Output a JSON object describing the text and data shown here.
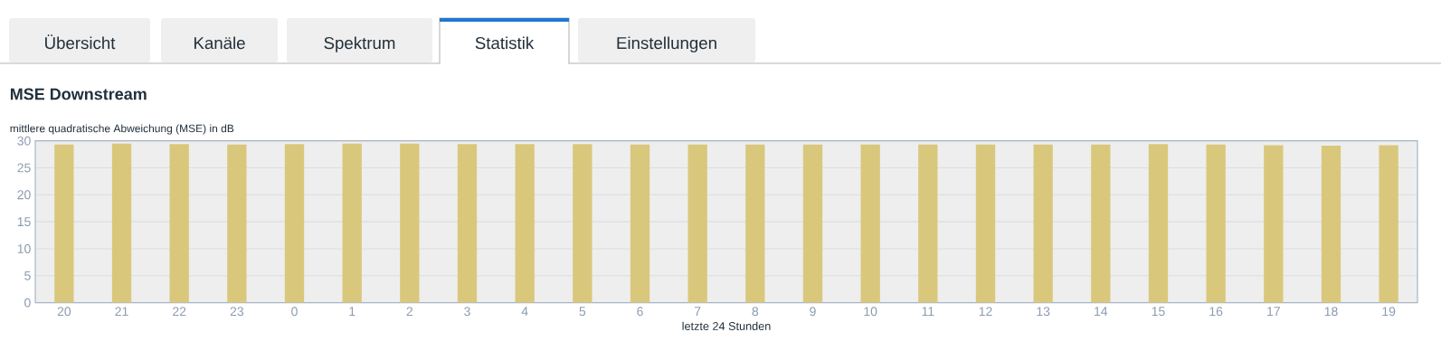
{
  "chart_data": {
    "type": "bar",
    "title": "MSE Downstream",
    "ylabel": "mittlere quadratische Abweichung (MSE) in dB",
    "xlabel": "letzte 24 Stunden",
    "annotations": [
      "Übersicht",
      "Kanäle",
      "Spektrum",
      "Statistik",
      "Einstellungen"
    ],
    "categories": [
      "20",
      "21",
      "22",
      "23",
      "0",
      "1",
      "2",
      "3",
      "4",
      "5",
      "6",
      "7",
      "8",
      "9",
      "10",
      "11",
      "12",
      "13",
      "14",
      "15",
      "16",
      "17",
      "18",
      "19"
    ],
    "values": [
      29.3,
      29.5,
      29.4,
      29.3,
      29.4,
      29.5,
      29.5,
      29.4,
      29.4,
      29.4,
      29.3,
      29.3,
      29.3,
      29.3,
      29.3,
      29.3,
      29.3,
      29.3,
      29.3,
      29.4,
      29.3,
      29.2,
      29.1,
      29.2
    ],
    "color": "#d9c87c",
    "ylim": [
      0,
      30
    ],
    "yticks": [
      0,
      5,
      10,
      15,
      20,
      25,
      30
    ],
    "grid": "y"
  }
}
